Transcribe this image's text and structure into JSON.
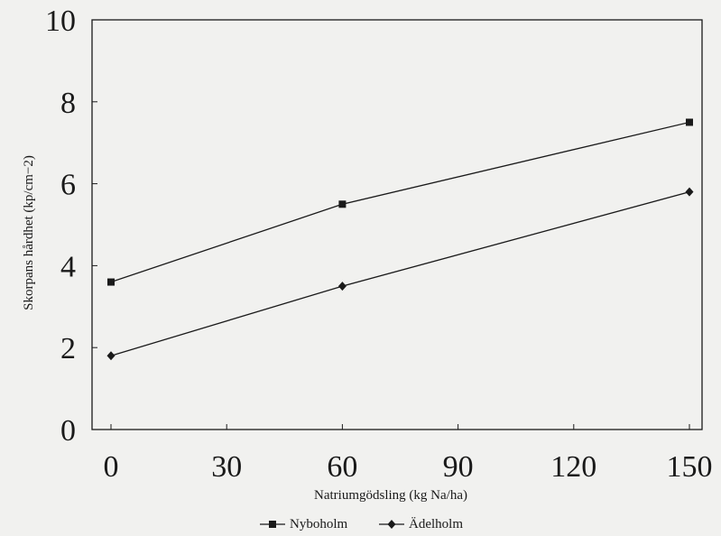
{
  "chart_data": {
    "type": "line",
    "title": "",
    "xlabel": "Natriumgödsling (kg Na/ha)",
    "ylabel": "Skorpans hårdhet (kp/cm−2)",
    "xlim": [
      0,
      150
    ],
    "ylim": [
      0,
      10
    ],
    "x_ticks": [
      "0",
      "30",
      "60",
      "90",
      "120",
      "150"
    ],
    "y_ticks": [
      "0",
      "2",
      "4",
      "6",
      "8",
      "10"
    ],
    "grid": false,
    "legend_position": "bottom-center",
    "x": [
      0,
      60,
      150
    ],
    "series": [
      {
        "name": "Nyboholm",
        "marker": "square",
        "values": [
          3.6,
          5.5,
          7.5
        ]
      },
      {
        "name": "Ädelholm",
        "marker": "diamond",
        "values": [
          1.8,
          3.5,
          5.8
        ]
      }
    ],
    "colors": {
      "line": "#1a1a1a",
      "background": "#f1f1ef"
    }
  }
}
